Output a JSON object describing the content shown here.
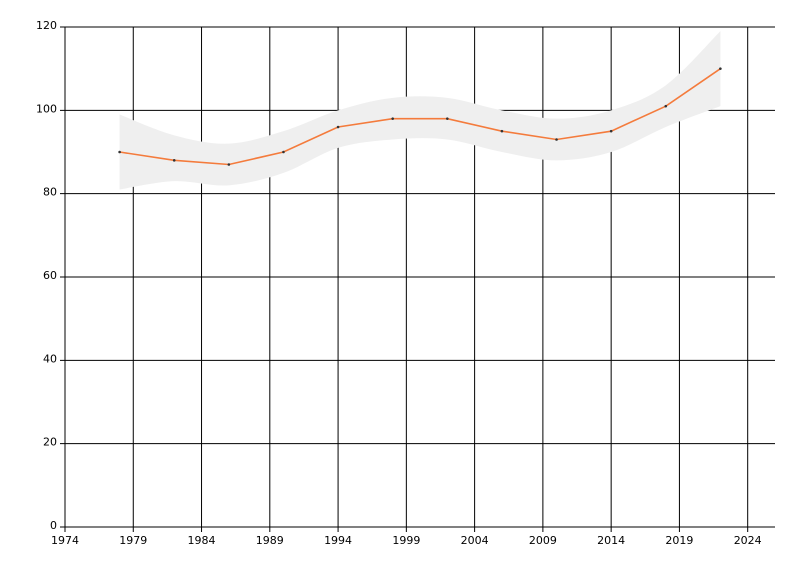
{
  "chart_data": {
    "type": "line",
    "x": [
      1978,
      1982,
      1986,
      1990,
      1994,
      1998,
      2002,
      2006,
      2010,
      2014,
      2018,
      2022
    ],
    "values": [
      90,
      88,
      87,
      90,
      96,
      98,
      98,
      95,
      93,
      95,
      101,
      110
    ],
    "upper": [
      99,
      94,
      92,
      95,
      100,
      103,
      103,
      100,
      98,
      100,
      106,
      119
    ],
    "lower": [
      81,
      83,
      82,
      85,
      91,
      93,
      93,
      90,
      88,
      90,
      96,
      101
    ],
    "color": "#f47b3c",
    "band_color": "#efefef",
    "point_color": "#333333",
    "xlim": [
      1974,
      2026
    ],
    "xticks": [
      1974,
      1979,
      1984,
      1989,
      1994,
      1999,
      2004,
      2009,
      2014,
      2019,
      2024
    ],
    "ylim": [
      0,
      120
    ],
    "yticks": [
      0,
      20,
      40,
      60,
      80,
      100,
      120
    ],
    "grid": true
  }
}
